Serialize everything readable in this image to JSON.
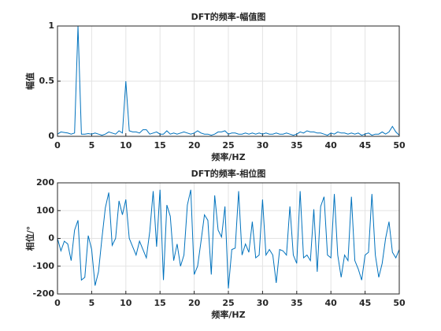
{
  "chart_data": [
    {
      "type": "line",
      "title": "DFT的频率-幅值图",
      "xlabel": "频率/HZ",
      "ylabel": "幅值",
      "x": [
        0,
        0.5,
        1,
        1.5,
        2,
        2.5,
        3,
        3.5,
        4,
        4.5,
        5,
        5.5,
        6,
        6.5,
        7,
        7.5,
        8,
        8.5,
        9,
        9.5,
        10,
        10.5,
        11,
        11.5,
        12,
        12.5,
        13,
        13.5,
        14,
        14.5,
        15,
        15.5,
        16,
        16.5,
        17,
        17.5,
        18,
        18.5,
        19,
        19.5,
        20,
        20.5,
        21,
        21.5,
        22,
        22.5,
        23,
        23.5,
        24,
        24.5,
        25,
        25.5,
        26,
        26.5,
        27,
        27.5,
        28,
        28.5,
        29,
        29.5,
        30,
        30.5,
        31,
        31.5,
        32,
        32.5,
        33,
        33.5,
        34,
        34.5,
        35,
        35.5,
        36,
        36.5,
        37,
        37.5,
        38,
        38.5,
        39,
        39.5,
        40,
        40.5,
        41,
        41.5,
        42,
        42.5,
        43,
        43.5,
        44,
        44.5,
        45,
        45.5,
        46,
        46.5,
        47,
        47.5,
        48,
        48.5,
        49,
        49.5,
        50
      ],
      "values": [
        0.02,
        0.04,
        0.035,
        0.03,
        0.02,
        0.03,
        1,
        0.02,
        0.02,
        0.025,
        0.02,
        0.03,
        0.02,
        0.01,
        0.02,
        0.04,
        0.03,
        0.02,
        0.05,
        0.03,
        0.5,
        0.05,
        0.04,
        0.04,
        0.03,
        0.06,
        0.06,
        0.02,
        0.03,
        0.04,
        0.02,
        0.02,
        0.05,
        0.02,
        0.03,
        0.02,
        0.03,
        0.04,
        0.03,
        0.02,
        0.03,
        0.05,
        0.03,
        0.02,
        0.02,
        0.01,
        0.02,
        0.04,
        0.04,
        0.05,
        0.02,
        0.03,
        0.03,
        0.02,
        0.02,
        0.03,
        0.02,
        0.03,
        0.02,
        0.03,
        0.02,
        0.03,
        0.02,
        0.02,
        0.03,
        0.02,
        0.02,
        0.03,
        0.02,
        0.01,
        0.02,
        0.04,
        0.03,
        0.05,
        0.04,
        0.04,
        0.03,
        0.03,
        0.02,
        0.01,
        0.03,
        0.02,
        0.04,
        0.03,
        0.03,
        0.02,
        0.03,
        0.02,
        0.03,
        0.01,
        0.02,
        0.03,
        0.01,
        0.02,
        0.02,
        0.04,
        0.02,
        0.04,
        0.09,
        0.04,
        0.01
      ],
      "color": "#0072bd",
      "xlim": [
        0,
        50
      ],
      "ylim": [
        0,
        1
      ],
      "xticks": [
        0,
        5,
        10,
        15,
        20,
        25,
        30,
        35,
        40,
        45,
        50
      ],
      "yticks": [
        0,
        0.5,
        1
      ],
      "grid": true
    },
    {
      "type": "line",
      "title": "DFT的频率-相位图",
      "xlabel": "频率/HZ",
      "ylabel": "相位/°",
      "x": [
        0,
        0.5,
        1,
        1.5,
        2,
        2.5,
        3,
        3.5,
        4,
        4.5,
        5,
        5.5,
        6,
        6.5,
        7,
        7.5,
        8,
        8.5,
        9,
        9.5,
        10,
        10.5,
        11,
        11.5,
        12,
        12.5,
        13,
        13.5,
        14,
        14.5,
        15,
        15.5,
        16,
        16.5,
        17,
        17.5,
        18,
        18.5,
        19,
        19.5,
        20,
        20.5,
        21,
        21.5,
        22,
        22.5,
        23,
        23.5,
        24,
        24.5,
        25,
        25.5,
        26,
        26.5,
        27,
        27.5,
        28,
        28.5,
        29,
        29.5,
        30,
        30.5,
        31,
        31.5,
        32,
        32.5,
        33,
        33.5,
        34,
        34.5,
        35,
        35.5,
        36,
        36.5,
        37,
        37.5,
        38,
        38.5,
        39,
        39.5,
        40,
        40.5,
        41,
        41.5,
        42,
        42.5,
        43,
        43.5,
        44,
        44.5,
        45,
        45.5,
        46,
        46.5,
        47,
        47.5,
        48,
        48.5,
        49,
        49.5,
        50
      ],
      "values": [
        0,
        -45,
        -10,
        -20,
        -80,
        30,
        65,
        -150,
        -140,
        10,
        -40,
        -170,
        -120,
        0,
        110,
        165,
        -25,
        0,
        135,
        85,
        140,
        0,
        -30,
        -60,
        -10,
        -40,
        -70,
        25,
        170,
        -30,
        175,
        -150,
        120,
        80,
        -80,
        -20,
        -100,
        -60,
        120,
        175,
        -130,
        -100,
        -10,
        85,
        65,
        -130,
        155,
        30,
        5,
        115,
        -180,
        -40,
        -35,
        170,
        -60,
        -20,
        -50,
        60,
        -70,
        -60,
        140,
        -60,
        -40,
        -60,
        -160,
        -40,
        -45,
        -60,
        115,
        -60,
        -90,
        170,
        -70,
        -60,
        -80,
        105,
        -120,
        115,
        150,
        -60,
        -70,
        160,
        -60,
        -140,
        -60,
        -80,
        150,
        -80,
        -110,
        -150,
        -60,
        -50,
        160,
        -60,
        -140,
        -90,
        0,
        60,
        -50,
        -70,
        -40
      ],
      "color": "#0072bd",
      "xlim": [
        0,
        50
      ],
      "ylim": [
        -200,
        200
      ],
      "xticks": [
        0,
        5,
        10,
        15,
        20,
        25,
        30,
        35,
        40,
        45,
        50
      ],
      "yticks": [
        -200,
        -100,
        0,
        100,
        200
      ],
      "grid": true
    }
  ]
}
